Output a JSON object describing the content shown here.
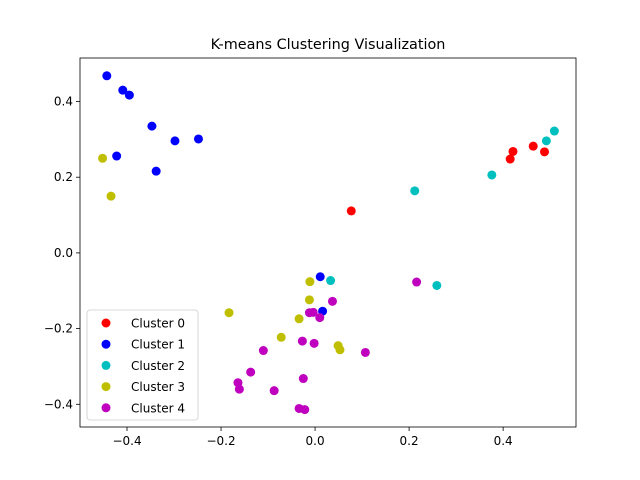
{
  "chart_data": {
    "type": "scatter",
    "title": "K-means Clustering Visualization",
    "xlabel": "",
    "ylabel": "",
    "xlim": [
      -0.5,
      0.555
    ],
    "ylim": [
      -0.46,
      0.515
    ],
    "xticks": [
      -0.4,
      -0.2,
      0.0,
      0.2,
      0.4
    ],
    "yticks": [
      -0.4,
      -0.2,
      0.0,
      0.2,
      0.4
    ],
    "xtick_labels": [
      "−0.4",
      "−0.2",
      "0.0",
      "0.2",
      "0.4"
    ],
    "ytick_labels": [
      "−0.4",
      "−0.2",
      "0.0",
      "0.2",
      "0.4"
    ],
    "grid": false,
    "legend_position": "lower-left",
    "series": [
      {
        "name": "Cluster 0",
        "color": "#ff0000",
        "points": [
          [
            0.077,
            0.111
          ],
          [
            0.415,
            0.248
          ],
          [
            0.421,
            0.268
          ],
          [
            0.464,
            0.282
          ],
          [
            0.488,
            0.267
          ]
        ]
      },
      {
        "name": "Cluster 1",
        "color": "#0000ff",
        "points": [
          [
            -0.443,
            0.468
          ],
          [
            -0.409,
            0.43
          ],
          [
            -0.395,
            0.417
          ],
          [
            -0.347,
            0.335
          ],
          [
            -0.298,
            0.296
          ],
          [
            -0.248,
            0.301
          ],
          [
            -0.422,
            0.256
          ],
          [
            -0.338,
            0.216
          ],
          [
            0.011,
            -0.063
          ],
          [
            0.016,
            -0.154
          ]
        ]
      },
      {
        "name": "Cluster 2",
        "color": "#00bfbf",
        "points": [
          [
            0.509,
            0.322
          ],
          [
            0.492,
            0.296
          ],
          [
            0.376,
            0.206
          ],
          [
            0.212,
            0.164
          ],
          [
            0.033,
            -0.073
          ],
          [
            0.259,
            -0.086
          ]
        ]
      },
      {
        "name": "Cluster 3",
        "color": "#bfbf00",
        "points": [
          [
            -0.452,
            0.25
          ],
          [
            -0.434,
            0.15
          ],
          [
            -0.011,
            -0.076
          ],
          [
            -0.012,
            -0.124
          ],
          [
            -0.183,
            -0.158
          ],
          [
            -0.034,
            -0.174
          ],
          [
            -0.072,
            -0.223
          ],
          [
            0.049,
            -0.245
          ],
          [
            0.053,
            -0.256
          ]
        ]
      },
      {
        "name": "Cluster 4",
        "color": "#bf00bf",
        "points": [
          [
            0.216,
            -0.077
          ],
          [
            0.037,
            -0.128
          ],
          [
            -0.012,
            -0.158
          ],
          [
            -0.004,
            -0.157
          ],
          [
            0.01,
            -0.171
          ],
          [
            -0.027,
            -0.233
          ],
          [
            -0.002,
            -0.239
          ],
          [
            -0.11,
            -0.258
          ],
          [
            0.107,
            -0.263
          ],
          [
            -0.137,
            -0.315
          ],
          [
            -0.025,
            -0.332
          ],
          [
            -0.164,
            -0.343
          ],
          [
            -0.161,
            -0.36
          ],
          [
            -0.087,
            -0.364
          ],
          [
            -0.034,
            -0.411
          ],
          [
            -0.022,
            -0.414
          ]
        ]
      }
    ]
  }
}
